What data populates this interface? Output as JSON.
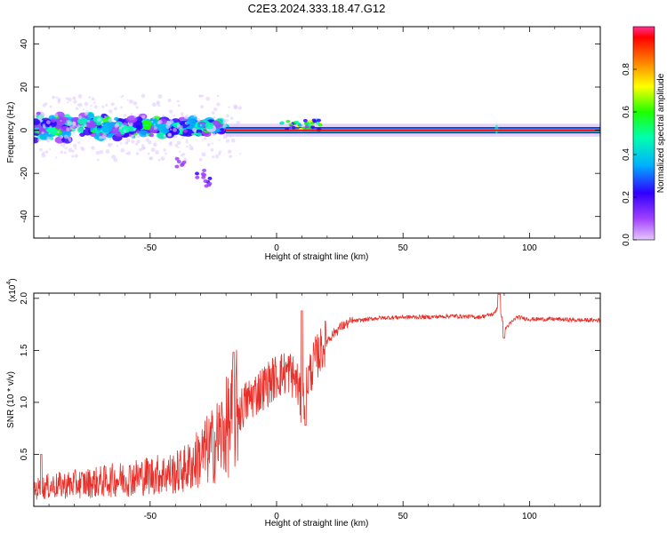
{
  "title": "C2E3.2024.333.18.47.G12",
  "chart_data": [
    {
      "type": "heatmap",
      "panel": "spectrogram",
      "xlabel": "Height of straight line (km)",
      "ylabel": "Frequency (Hz)",
      "xlim": [
        -96,
        128
      ],
      "ylim": [
        -50,
        48
      ],
      "xticks": [
        -50,
        0,
        50,
        100
      ],
      "yticks": [
        -40,
        -20,
        0,
        20,
        40
      ],
      "colorbar": {
        "label": "Normalized spectral amplitude",
        "range": [
          0,
          1
        ],
        "ticks": [
          "0.0",
          "0.2",
          "0.4",
          "0.6",
          "0.8"
        ],
        "tick_values": [
          0.0,
          0.2,
          0.4,
          0.6,
          0.8
        ],
        "colors": [
          "#d8a8ff",
          "#8000ff",
          "#0000ff",
          "#00c8ff",
          "#00ff80",
          "#00ff00",
          "#ffff00",
          "#ff8000",
          "#ff0000",
          "#ff40a0"
        ]
      },
      "features": [
        {
          "name": "broad scatter",
          "x_range": [
            -96,
            -20
          ],
          "freq_range": [
            -8,
            10
          ],
          "amplitude": 0.35
        },
        {
          "name": "low-frequency tail",
          "points": [
            [
              -38,
              -15
            ],
            [
              -30,
              -20
            ],
            [
              -27,
              -24
            ]
          ],
          "amplitude": 0.2
        },
        {
          "name": "carrier line",
          "x_range": [
            -20,
            128
          ],
          "freq": 0,
          "amplitude": 0.9
        },
        {
          "name": "bump",
          "x_range": [
            2,
            18
          ],
          "freq_range": [
            0,
            5
          ],
          "amplitude": 0.6
        },
        {
          "name": "spike",
          "x": 87,
          "freq_range": [
            -1,
            2
          ],
          "amplitude": 0.5
        }
      ]
    },
    {
      "type": "line",
      "panel": "snr",
      "xlabel": "Height of straight line (km)",
      "ylabel": "SNR (10 * v/v)",
      "scale_label": "(x10",
      "scale_exp": "4",
      "scale_close": ")",
      "xlim": [
        -96,
        128
      ],
      "ylim": [
        0,
        2.05
      ],
      "xticks": [
        -50,
        0,
        50,
        100
      ],
      "yticks": [
        0.5,
        1.0,
        1.5,
        2.0
      ],
      "ytick_labels": [
        "0.5",
        "1.0",
        "1.5",
        "2.0"
      ],
      "color": "#e8302a",
      "series": [
        {
          "name": "SNR envelope",
          "x": [
            -96,
            -90,
            -80,
            -70,
            -60,
            -50,
            -40,
            -35,
            -30,
            -25,
            -20,
            -17,
            -15,
            -12,
            -10,
            -5,
            0,
            5,
            8,
            10,
            12,
            15,
            20,
            25,
            30,
            40,
            50,
            60,
            70,
            80,
            86,
            88,
            90,
            95,
            100,
            110,
            120,
            128
          ],
          "y": [
            0.15,
            0.18,
            0.2,
            0.22,
            0.25,
            0.28,
            0.3,
            0.35,
            0.45,
            0.55,
            0.7,
            0.8,
            0.9,
            1.0,
            1.05,
            1.15,
            1.25,
            1.3,
            1.2,
            0.95,
            1.2,
            1.4,
            1.6,
            1.72,
            1.78,
            1.81,
            1.82,
            1.82,
            1.83,
            1.82,
            1.85,
            1.95,
            1.7,
            1.82,
            1.8,
            1.8,
            1.79,
            1.79
          ]
        }
      ]
    }
  ]
}
